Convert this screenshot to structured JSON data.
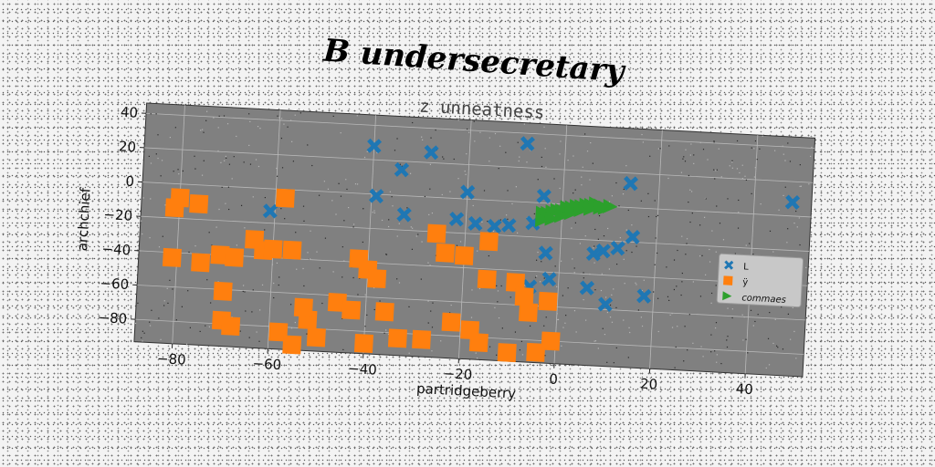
{
  "suptitle": "B undersecretary",
  "chart_data": {
    "type": "scatter",
    "title": "z unneatness",
    "xlabel": "partridgeberry",
    "ylabel": "archchief",
    "xlim": [
      -88,
      52
    ],
    "ylim": [
      -93,
      46
    ],
    "xticks": [
      -80,
      -60,
      -40,
      -20,
      0,
      20,
      40
    ],
    "yticks": [
      40,
      20,
      0,
      -20,
      -40,
      -60,
      -80
    ],
    "grid": true,
    "legend_position": "right",
    "plot_background": "#808080",
    "series": [
      {
        "name": "L",
        "marker": "X",
        "color": "#1f77b4",
        "points": [
          [
            -40,
            28
          ],
          [
            -34,
            15
          ],
          [
            -28,
            26
          ],
          [
            -8,
            34
          ],
          [
            -39,
            -1
          ],
          [
            -4,
            4
          ],
          [
            -20,
            4
          ],
          [
            14,
            14
          ],
          [
            48,
            8
          ],
          [
            -61,
            -13
          ],
          [
            -33,
            -11
          ],
          [
            -22,
            -12
          ],
          [
            -18,
            -14
          ],
          [
            -14,
            -15
          ],
          [
            -11,
            -14
          ],
          [
            -6,
            -12
          ],
          [
            -3,
            -29
          ],
          [
            -2,
            -44
          ],
          [
            -6,
            -49
          ],
          [
            15,
            -17
          ],
          [
            12,
            -24
          ],
          [
            9,
            -26
          ],
          [
            7,
            -28
          ],
          [
            6,
            -48
          ],
          [
            10,
            -57
          ],
          [
            18,
            -51
          ]
        ]
      },
      {
        "name": "ÿ",
        "marker": "s",
        "color": "#ff7f0e",
        "points": [
          [
            -80,
            -8
          ],
          [
            -81,
            -14
          ],
          [
            -76,
            -11
          ],
          [
            -58,
            -5
          ],
          [
            -81,
            -43
          ],
          [
            -75,
            -45
          ],
          [
            -71,
            -40
          ],
          [
            -68,
            -41
          ],
          [
            -64,
            -30
          ],
          [
            -62,
            -36
          ],
          [
            -60,
            -35
          ],
          [
            -56,
            -35
          ],
          [
            -70,
            -61
          ],
          [
            -70,
            -78
          ],
          [
            -68,
            -81
          ],
          [
            -58,
            -83
          ],
          [
            -52,
            -75
          ],
          [
            -53,
            -68
          ],
          [
            -46,
            -64
          ],
          [
            -43,
            -68
          ],
          [
            -42,
            -38
          ],
          [
            -40,
            -44
          ],
          [
            -38,
            -49
          ],
          [
            -36,
            -68
          ],
          [
            -26,
            -21
          ],
          [
            -24,
            -32
          ],
          [
            -20,
            -33
          ],
          [
            -15,
            -24
          ],
          [
            -15,
            -46
          ],
          [
            -9,
            -47
          ],
          [
            -7,
            -55
          ],
          [
            -6,
            -64
          ],
          [
            -2,
            -57
          ],
          [
            -1,
            -80
          ],
          [
            -4,
            -87
          ],
          [
            -10,
            -88
          ],
          [
            -16,
            -83
          ],
          [
            -18,
            -76
          ],
          [
            -22,
            -72
          ],
          [
            -28,
            -83
          ],
          [
            -33,
            -83
          ],
          [
            -40,
            -87
          ],
          [
            -50,
            -85
          ],
          [
            -55,
            -90
          ]
        ]
      },
      {
        "name": "commaes",
        "marker": ">",
        "color": "#2ca02c",
        "points": [
          [
            -4,
            -6
          ],
          [
            -3,
            -6
          ],
          [
            -2,
            -5
          ],
          [
            -1,
            -4
          ],
          [
            0,
            -4
          ],
          [
            1,
            -3
          ],
          [
            1,
            -2
          ],
          [
            2,
            -2
          ],
          [
            3,
            -1
          ],
          [
            4,
            -1
          ],
          [
            5,
            0
          ],
          [
            6,
            0
          ],
          [
            7,
            1
          ],
          [
            8,
            0
          ],
          [
            9,
            -1
          ],
          [
            10,
            0
          ],
          [
            -4,
            -10
          ],
          [
            -2,
            -9
          ],
          [
            0,
            -7
          ],
          [
            2,
            -5
          ],
          [
            4,
            -3
          ],
          [
            6,
            -2
          ],
          [
            8,
            -1
          ]
        ]
      }
    ]
  }
}
